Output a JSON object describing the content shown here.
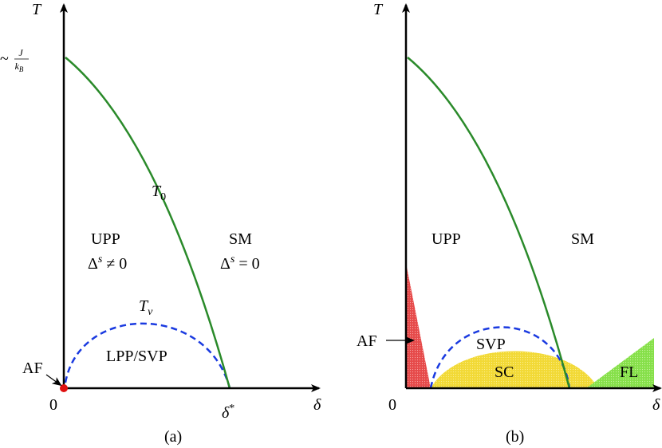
{
  "panels": [
    {
      "caption": "(a)",
      "y_axis": {
        "base": "T"
      },
      "scale": {
        "tilde": "~",
        "numerator": "J",
        "denominator": "k",
        "denominator_sub": "B"
      },
      "curve_label": {
        "base": "T",
        "sub": "0"
      },
      "dome_label": {
        "base": "T",
        "sub": "v"
      },
      "left_region": {
        "name": "UPP",
        "gap": {
          "base": "Δ",
          "sup": "s",
          "rest": " ≠ 0"
        }
      },
      "right_region": {
        "name": "SM",
        "gap": {
          "base": "Δ",
          "sup": "s",
          "rest": " = 0"
        }
      },
      "dome_region": "LPP/SVP",
      "af": "AF",
      "origin": "0",
      "critical_point": {
        "base": "δ",
        "sup": "*"
      },
      "x_axis": "δ"
    },
    {
      "caption": "(b)",
      "y_axis": {
        "base": "T"
      },
      "left_region": "UPP",
      "right_region": "SM",
      "af": "AF",
      "svp": "SVP",
      "sc": "SC",
      "fl": "FL",
      "origin": "0",
      "x_axis": "δ"
    }
  ]
}
